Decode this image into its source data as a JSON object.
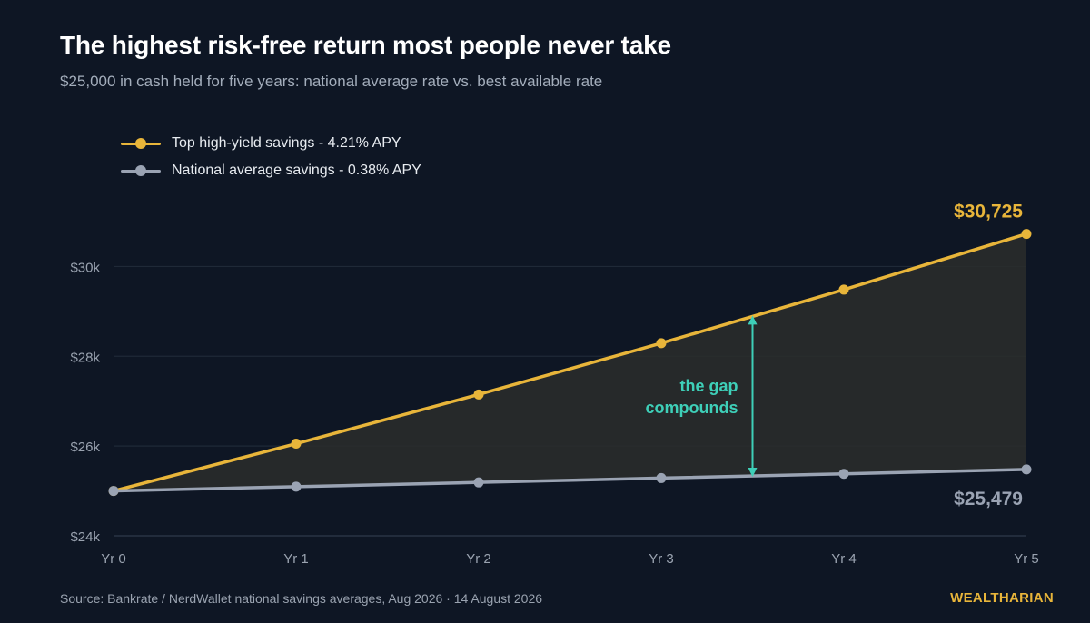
{
  "header": {
    "title": "The highest risk-free return most people never take",
    "subtitle": "$25,000 in cash held for five years: national average rate vs. best available rate"
  },
  "chart_data": {
    "type": "line",
    "x": [
      "Yr 0",
      "Yr 1",
      "Yr 2",
      "Yr 3",
      "Yr 4",
      "Yr 5"
    ],
    "ylim": [
      24000,
      31000
    ],
    "yticks": [
      24000,
      26000,
      28000,
      30000
    ],
    "ytick_labels": [
      "$24k",
      "$26k",
      "$28k",
      "$30k"
    ],
    "grid": true,
    "legend_position": "top-left",
    "series": [
      {
        "name": "Top high-yield savings - 4.21% APY",
        "color": "#e8b53a",
        "values": [
          25000,
          26053,
          27149,
          28292,
          29484,
          30725
        ],
        "end_label": "$30,725"
      },
      {
        "name": "National average savings - 0.38% APY",
        "color": "#9aa3b3",
        "values": [
          25000,
          25095,
          25190,
          25286,
          25382,
          25479
        ],
        "end_label": "$25,479"
      }
    ],
    "annotation": {
      "lines": [
        "the gap",
        "compounds"
      ],
      "color": "#3ecfb8",
      "x_position": 3.5
    }
  },
  "footer": {
    "source": "Source: Bankrate / NerdWallet national savings averages, Aug 2026  ·  14 August 2026",
    "brand": "WEALTHARIAN"
  }
}
